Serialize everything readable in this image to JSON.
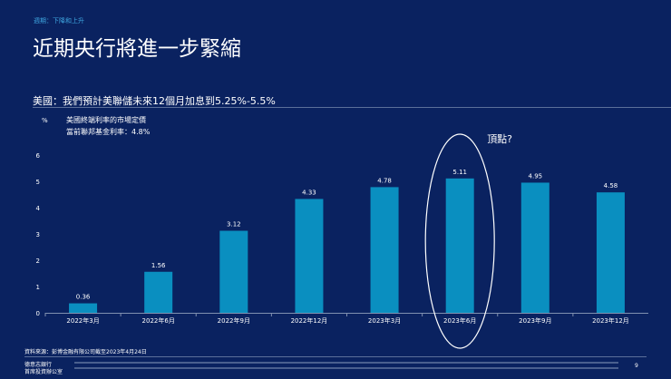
{
  "breadcrumb": "週期：下降和上升",
  "title": "近期央行將進一步緊縮",
  "subtitle": "美國：我們預計美聯儲未來12個月加息到5.25%-5.5%",
  "legend": {
    "line1": "美國終端利率的市場定價",
    "line2": "當前聯邦基金利率：4.8%"
  },
  "annotation": "頂點?",
  "source": "資料來源：彭博金融有限公司截至2023年4月24日",
  "footer": {
    "bank_line1": "德意志銀行",
    "bank_line2": "首席投資辦公室",
    "page": "9"
  },
  "colors": {
    "background": "#0a2260",
    "bar": "#0a8fc0",
    "accent": "#3fa6e0"
  },
  "chart_data": {
    "type": "bar",
    "categories": [
      "2022年3月",
      "2022年6月",
      "2022年9月",
      "2022年12月",
      "2023年3月",
      "2023年6月",
      "2023年9月",
      "2023年12月"
    ],
    "values": [
      0.36,
      1.56,
      3.12,
      4.33,
      4.78,
      5.11,
      4.95,
      4.58
    ],
    "ylabel": "%",
    "ylim": [
      0,
      6
    ],
    "yticks": [
      0,
      1,
      2,
      3,
      4,
      5,
      6
    ],
    "grid": false,
    "highlight": "2023年6月"
  }
}
